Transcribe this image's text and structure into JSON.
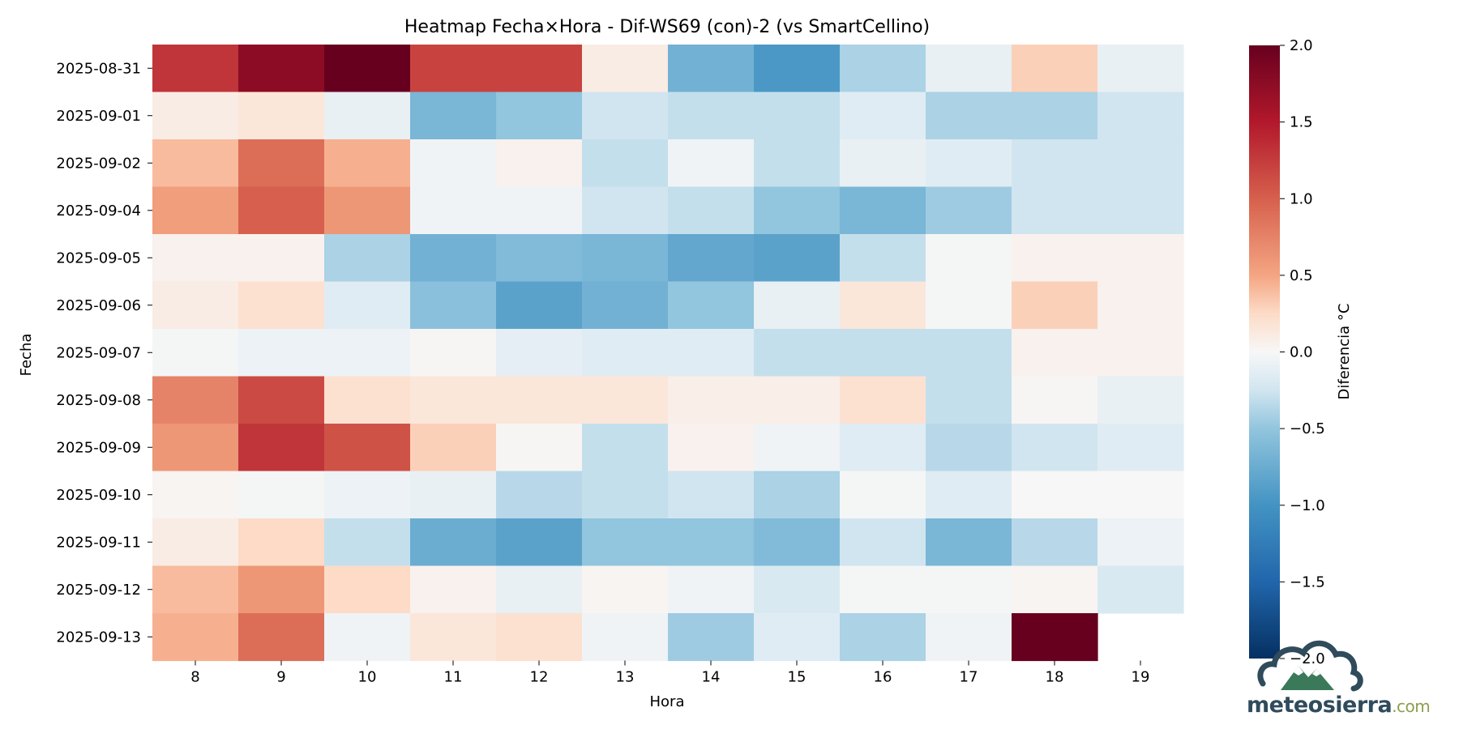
{
  "chart_data": {
    "type": "heatmap",
    "title": "Heatmap Fecha×Hora - Dif-WS69 (con)-2 (vs SmartCellino)",
    "xlabel": "Hora",
    "ylabel": "Fecha",
    "x": [
      "8",
      "9",
      "10",
      "11",
      "12",
      "13",
      "14",
      "15",
      "16",
      "17",
      "18",
      "19"
    ],
    "y": [
      "2025-08-31",
      "2025-09-01",
      "2025-09-02",
      "2025-09-04",
      "2025-09-05",
      "2025-09-06",
      "2025-09-07",
      "2025-09-08",
      "2025-09-09",
      "2025-09-10",
      "2025-09-11",
      "2025-09-12",
      "2025-09-13"
    ],
    "values": [
      [
        1.3,
        1.75,
        2.0,
        1.2,
        1.2,
        0.1,
        -0.7,
        -0.95,
        -0.4,
        -0.1,
        0.3,
        -0.1
      ],
      [
        0.1,
        0.15,
        -0.1,
        -0.65,
        -0.5,
        -0.25,
        -0.3,
        -0.3,
        -0.15,
        -0.4,
        -0.4,
        -0.25
      ],
      [
        0.4,
        0.9,
        0.45,
        -0.05,
        0.05,
        -0.3,
        -0.05,
        -0.3,
        -0.1,
        -0.15,
        -0.25,
        -0.25
      ],
      [
        0.55,
        1.0,
        0.6,
        -0.05,
        -0.05,
        -0.25,
        -0.3,
        -0.5,
        -0.65,
        -0.45,
        -0.25,
        -0.25
      ],
      [
        0.05,
        0.05,
        -0.4,
        -0.7,
        -0.6,
        -0.65,
        -0.8,
        -0.85,
        -0.3,
        -0.02,
        0.05,
        0.05
      ],
      [
        0.1,
        0.2,
        -0.15,
        -0.55,
        -0.85,
        -0.7,
        -0.5,
        -0.1,
        0.15,
        -0.02,
        0.3,
        0.05
      ],
      [
        -0.02,
        -0.07,
        -0.07,
        0.02,
        -0.12,
        -0.15,
        -0.15,
        -0.3,
        -0.3,
        -0.3,
        0.05,
        0.05
      ],
      [
        0.75,
        1.15,
        0.2,
        0.15,
        0.15,
        0.15,
        0.08,
        0.08,
        0.2,
        -0.3,
        0.02,
        -0.1
      ],
      [
        0.6,
        1.3,
        1.1,
        0.3,
        0.02,
        -0.3,
        0.05,
        -0.05,
        -0.15,
        -0.35,
        -0.25,
        -0.15
      ],
      [
        0.03,
        -0.02,
        -0.07,
        -0.1,
        -0.35,
        -0.3,
        -0.25,
        -0.4,
        -0.02,
        -0.15,
        0.0,
        0.0
      ],
      [
        0.1,
        0.25,
        -0.3,
        -0.75,
        -0.85,
        -0.5,
        -0.5,
        -0.6,
        -0.25,
        -0.65,
        -0.35,
        -0.07
      ],
      [
        0.4,
        0.6,
        0.25,
        0.05,
        -0.1,
        0.03,
        -0.05,
        -0.2,
        -0.02,
        -0.02,
        0.03,
        -0.2
      ],
      [
        0.45,
        0.9,
        -0.05,
        0.15,
        0.2,
        -0.05,
        -0.45,
        -0.15,
        -0.4,
        -0.05,
        2.0,
        null
      ]
    ],
    "vmin": -2.0,
    "vmax": 2.0,
    "colormap": "RdBu_r",
    "colorbar": {
      "label": "Diferencia °C",
      "ticks": [
        2.0,
        1.5,
        1.0,
        0.5,
        0.0,
        -0.5,
        -1.0,
        -1.5,
        -2.0
      ],
      "tick_labels": [
        "2.0",
        "1.5",
        "1.0",
        "0.5",
        "0.0",
        "−0.5",
        "−1.0",
        "−1.5",
        "−2.0"
      ]
    }
  },
  "logo": {
    "name": "meteosierra",
    "suffix": ".com",
    "icon": "cloud-mountain-logo-icon"
  }
}
